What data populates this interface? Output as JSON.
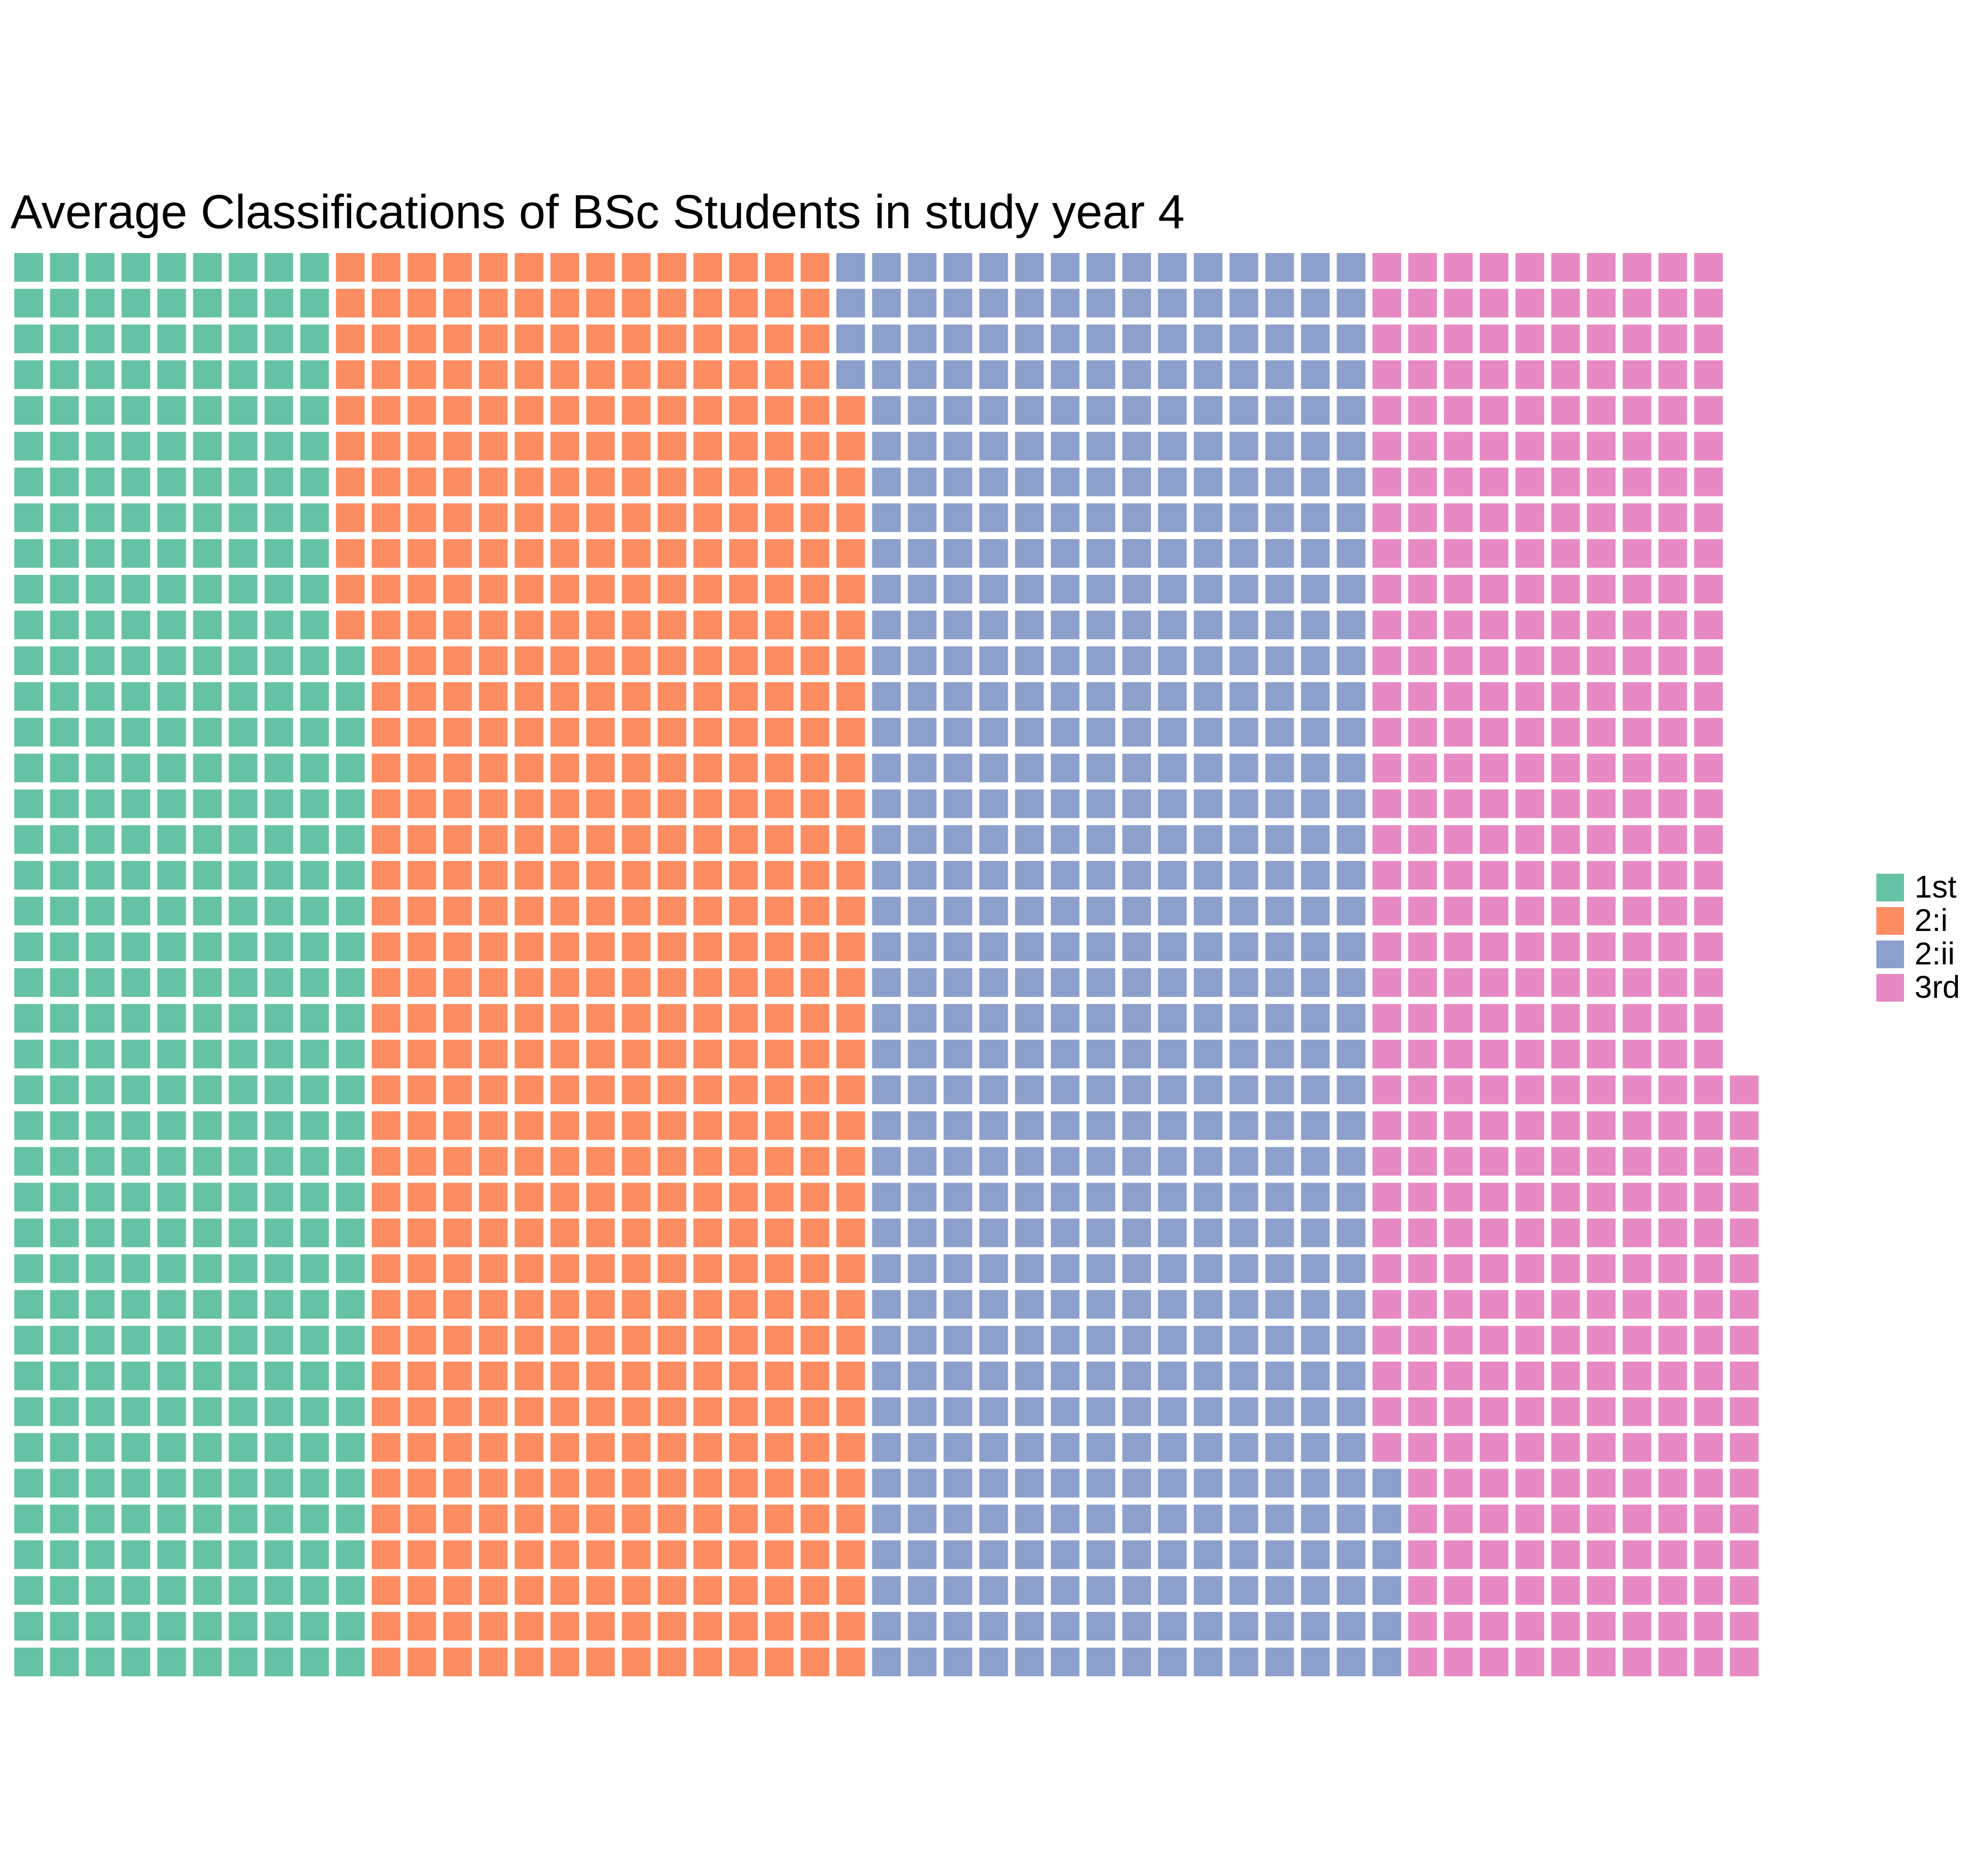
{
  "chart_data": {
    "type": "waffle",
    "title": "Average Classifications of BSc Students in study year 4",
    "rows": 40,
    "fill_order": "column-major, bottom-to-top within each column",
    "categories": [
      "1st",
      "2:i",
      "2:ii",
      "3rd"
    ],
    "values": [
      389,
      567,
      570,
      411
    ],
    "colors": [
      "#66c2a5",
      "#fc8d62",
      "#8da0cb",
      "#e78ac3"
    ],
    "legend": {
      "position": "right",
      "items": [
        {
          "label": "1st",
          "color": "#66c2a5"
        },
        {
          "label": "2:i",
          "color": "#fc8d62"
        },
        {
          "label": "2:ii",
          "color": "#8da0cb"
        },
        {
          "label": "3rd",
          "color": "#e78ac3"
        }
      ]
    },
    "grid": false,
    "axes": false
  }
}
